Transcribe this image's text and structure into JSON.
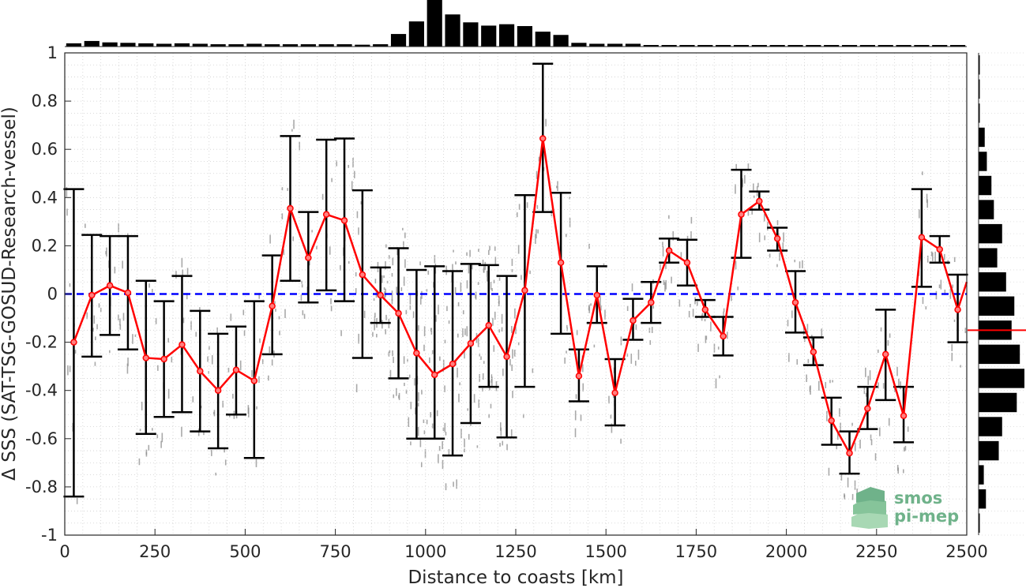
{
  "chart_data": {
    "type": "line",
    "xlabel": "Distance to coasts [km]",
    "ylabel": "Δ SSS (SAT-TSG-GOSUD-Research-vessel)",
    "xlim": [
      0,
      2500
    ],
    "ylim": [
      -1,
      1
    ],
    "xticks": [
      "0",
      "250",
      "500",
      "750",
      "1000",
      "1250",
      "1500",
      "1750",
      "2000",
      "2250",
      "2500"
    ],
    "yticks": [
      "1",
      "0.8",
      "0.6",
      "0.4",
      "0.2",
      "0",
      "-0.2",
      "-0.4",
      "-0.6",
      "-0.8",
      "-1"
    ],
    "grid": true,
    "zero_line": 0,
    "series": [
      {
        "color": "#ff0000",
        "x": [
          25,
          75,
          125,
          175,
          225,
          275,
          325,
          375,
          425,
          475,
          525,
          575,
          625,
          675,
          725,
          775,
          825,
          875,
          925,
          975,
          1025,
          1075,
          1125,
          1175,
          1225,
          1275,
          1325,
          1375,
          1425,
          1475,
          1525,
          1575,
          1625,
          1675,
          1725,
          1775,
          1825,
          1875,
          1925,
          1975,
          2025,
          2075,
          2125,
          2175,
          2225,
          2275,
          2325,
          2375,
          2425,
          2475
        ],
        "y": [
          -0.2,
          -0.005,
          0.035,
          0.005,
          -0.265,
          -0.27,
          -0.21,
          -0.32,
          -0.4,
          -0.315,
          -0.36,
          -0.05,
          0.355,
          0.15,
          0.33,
          0.305,
          0.08,
          -0.005,
          -0.08,
          -0.245,
          -0.335,
          -0.29,
          -0.205,
          -0.13,
          -0.26,
          0.015,
          0.645,
          0.13,
          -0.34,
          -0.005,
          -0.41,
          -0.11,
          -0.035,
          0.18,
          0.13,
          -0.065,
          -0.175,
          0.33,
          0.385,
          0.23,
          -0.035,
          -0.24,
          -0.525,
          -0.66,
          -0.475,
          -0.25,
          -0.505,
          0.235,
          0.185,
          -0.065
        ],
        "err_low": [
          -0.84,
          -0.26,
          -0.17,
          -0.23,
          -0.58,
          -0.51,
          -0.49,
          -0.57,
          -0.64,
          -0.5,
          -0.68,
          -0.25,
          0.055,
          -0.035,
          0.015,
          -0.03,
          -0.265,
          -0.12,
          -0.35,
          -0.6,
          -0.6,
          -0.67,
          -0.535,
          -0.385,
          -0.595,
          -0.385,
          0.34,
          -0.165,
          -0.445,
          -0.12,
          -0.545,
          -0.19,
          -0.12,
          0.13,
          0.035,
          -0.095,
          -0.255,
          0.15,
          0.35,
          0.18,
          -0.16,
          -0.295,
          -0.625,
          -0.745,
          -0.56,
          -0.44,
          -0.615,
          0.03,
          0.13,
          -0.2
        ],
        "err_high": [
          0.435,
          0.245,
          0.24,
          0.24,
          0.055,
          -0.03,
          0.075,
          -0.07,
          -0.165,
          -0.135,
          -0.03,
          0.16,
          0.655,
          0.34,
          0.64,
          0.645,
          0.43,
          0.11,
          0.19,
          0.1,
          0.115,
          0.095,
          0.125,
          0.12,
          0.075,
          0.41,
          0.955,
          0.42,
          -0.23,
          0.115,
          -0.27,
          -0.02,
          0.05,
          0.23,
          0.225,
          -0.025,
          -0.095,
          0.515,
          0.425,
          0.275,
          0.095,
          -0.18,
          -0.43,
          -0.57,
          -0.385,
          -0.065,
          -0.385,
          0.435,
          0.24,
          0.08
        ]
      }
    ],
    "histogram_x": {
      "x": [
        25,
        75,
        125,
        175,
        225,
        275,
        325,
        375,
        425,
        475,
        525,
        575,
        625,
        675,
        725,
        775,
        825,
        875,
        925,
        975,
        1025,
        1075,
        1125,
        1175,
        1225,
        1275,
        1325,
        1375,
        1425,
        1475,
        1525,
        1575,
        1625,
        1675,
        1725,
        1775,
        1825,
        1875,
        1925,
        1975,
        2025,
        2075,
        2125,
        2175,
        2225,
        2275,
        2325,
        2375,
        2425,
        2475
      ],
      "counts": [
        0.07,
        0.12,
        0.09,
        0.08,
        0.07,
        0.06,
        0.07,
        0.06,
        0.05,
        0.05,
        0.06,
        0.05,
        0.05,
        0.05,
        0.05,
        0.05,
        0.04,
        0.05,
        0.27,
        0.54,
        1.0,
        0.69,
        0.52,
        0.45,
        0.48,
        0.44,
        0.32,
        0.25,
        0.08,
        0.06,
        0.06,
        0.06,
        0.03,
        0.03,
        0.02,
        0.02,
        0.02,
        0.02,
        0.02,
        0.02,
        0.02,
        0.02,
        0.02,
        0.02,
        0.02,
        0.02,
        0.02,
        0.02,
        0.02,
        0.02
      ]
    },
    "histogram_y": {
      "y": [
        0.95,
        0.85,
        0.75,
        0.65,
        0.55,
        0.45,
        0.35,
        0.25,
        0.15,
        0.05,
        -0.05,
        -0.15,
        -0.25,
        -0.35,
        -0.45,
        -0.55,
        -0.65,
        -0.75,
        -0.85,
        -0.95
      ],
      "counts": [
        0.01,
        0.03,
        0.03,
        0.2,
        0.27,
        0.42,
        0.5,
        0.77,
        0.61,
        0.9,
        1.17,
        1.08,
        1.35,
        1.5,
        1.25,
        0.77,
        0.66,
        0.17,
        0.24,
        0.02
      ],
      "mean_line": -0.15,
      "mean_color": "#ff0000"
    },
    "zero_line_color": "#0000ff"
  },
  "logo": {
    "line1": "smos",
    "line2": "pi-mep"
  }
}
